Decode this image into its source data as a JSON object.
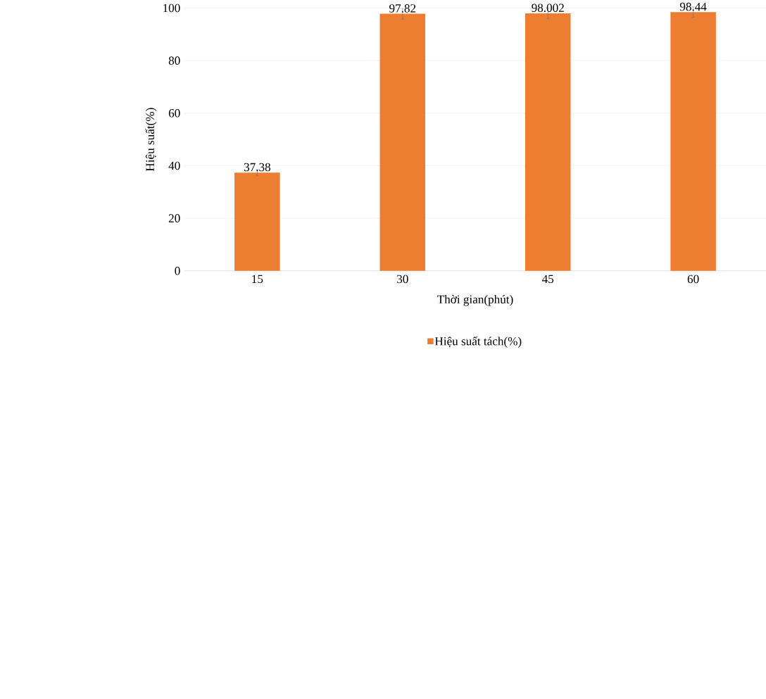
{
  "chart_data": {
    "type": "bar",
    "xlabel": "Thời gian(phút)",
    "ylabel": "Hiệu suất(%)",
    "categories": [
      "15",
      "30",
      "45",
      "60"
    ],
    "series": [
      {
        "name": "Hiệu suất tách(%)",
        "color": "#ed7d31",
        "values": [
          37.38,
          97.82,
          98.002,
          98.44
        ],
        "errors": [
          1.2,
          2,
          2,
          2
        ]
      }
    ],
    "ylim": [
      0,
      100
    ],
    "yticks": [
      0,
      20,
      40,
      60,
      80,
      100
    ],
    "grid": "y",
    "legend": "bottom",
    "data_labels": true
  }
}
